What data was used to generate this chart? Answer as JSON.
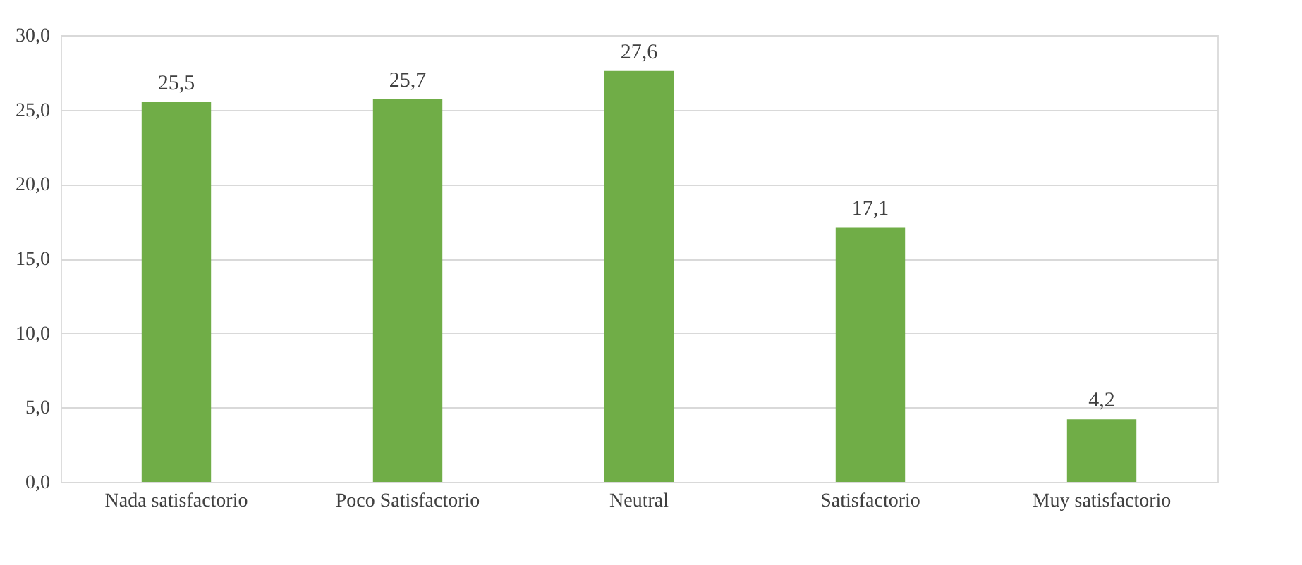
{
  "chart_data": {
    "type": "bar",
    "categories": [
      "Nada satisfactorio",
      "Poco Satisfactorio",
      "Neutral",
      "Satisfactorio",
      "Muy satisfactorio"
    ],
    "values": [
      25.5,
      25.7,
      27.6,
      17.1,
      4.2
    ],
    "value_labels": [
      "25,5",
      "25,7",
      "27,6",
      "17,1",
      "4,2"
    ],
    "color": "#70ad47",
    "ylim": [
      0,
      30
    ],
    "yticks": [
      {
        "value": 0,
        "label": "0,0"
      },
      {
        "value": 5,
        "label": "5,0"
      },
      {
        "value": 10,
        "label": "10,0"
      },
      {
        "value": 15,
        "label": "15,0"
      },
      {
        "value": 20,
        "label": "20,0"
      },
      {
        "value": 25,
        "label": "25,0"
      },
      {
        "value": 30,
        "label": "30,0"
      }
    ],
    "grid": "y"
  }
}
